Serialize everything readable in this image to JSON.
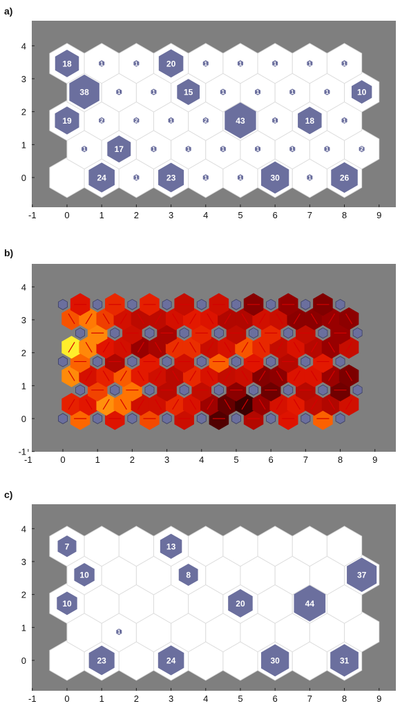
{
  "figure": {
    "panels": [
      {
        "label": "a)"
      },
      {
        "label": "b)"
      },
      {
        "label": "c)"
      }
    ]
  },
  "colors": {
    "plot_background": "#7f7f7f",
    "hex_empty": "#ffffff",
    "hex_edge": "#dcdcdc",
    "marker_fill": "#6b6f9e",
    "marker_text": "#ffffff",
    "heat_low": "#000000",
    "heat_mid": "#ff2a00",
    "heat_high": "#ffff33",
    "link_line": "#d40000"
  },
  "chart_data": [
    {
      "type": "hexagonal-som-hits",
      "panel": "a)",
      "grid": {
        "cols": 9,
        "rows": 5,
        "odd_row_offset": 0.5
      },
      "xlim": [
        -1,
        9.5
      ],
      "ylim": [
        -1,
        4.3
      ],
      "xticks": [
        -1,
        0,
        1,
        2,
        3,
        4,
        5,
        6,
        7,
        8,
        9
      ],
      "yticks": [
        -1,
        0,
        1,
        2,
        3,
        4
      ],
      "hits": [
        [
          0,
          24,
          1,
          23,
          1,
          1,
          30,
          1,
          26
        ],
        [
          1,
          17,
          1,
          1,
          1,
          1,
          1,
          1,
          2
        ],
        [
          19,
          2,
          2,
          1,
          2,
          43,
          1,
          18,
          1
        ],
        [
          38,
          1,
          1,
          15,
          1,
          1,
          1,
          1,
          10
        ],
        [
          18,
          1,
          1,
          20,
          1,
          1,
          1,
          1,
          1
        ]
      ],
      "xlabel": "",
      "ylabel": "",
      "title": ""
    },
    {
      "type": "hexagonal-som-neighbor-distances",
      "panel": "b)",
      "grid": {
        "cols": 9,
        "rows": 5,
        "odd_row_offset": 0.5
      },
      "xlim": [
        -1,
        9.5
      ],
      "ylim": [
        -1,
        4.3
      ],
      "xticks": [
        -1,
        0,
        1,
        2,
        3,
        4,
        5,
        6,
        7,
        8,
        9
      ],
      "yticks": [
        -1,
        0,
        1,
        2,
        3,
        4
      ],
      "cell_intensity": [
        [
          0.7,
          0.65,
          0.55,
          0.55,
          0.4,
          0.12,
          0.55,
          0.65,
          0.55
        ],
        [
          0.7,
          0.85,
          0.55,
          0.4,
          0.25,
          0.3,
          0.35,
          0.35,
          0.2
        ],
        [
          0.9,
          0.55,
          0.45,
          0.55,
          0.55,
          0.65,
          0.45,
          0.6,
          0.4
        ],
        [
          0.8,
          0.55,
          0.4,
          0.55,
          0.5,
          0.5,
          0.45,
          0.45,
          0.4
        ],
        [
          0.7,
          0.5,
          0.45,
          0.7,
          0.45,
          0.4,
          0.25,
          0.1,
          0.4
        ]
      ],
      "xlabel": "",
      "ylabel": "",
      "title": ""
    },
    {
      "type": "hexagonal-som-hits",
      "panel": "c)",
      "grid": {
        "cols": 9,
        "rows": 5,
        "odd_row_offset": 0.5
      },
      "xlim": [
        -1,
        9.5
      ],
      "ylim": [
        -1,
        4.3
      ],
      "xticks": [
        -1,
        0,
        1,
        2,
        3,
        4,
        5,
        6,
        7,
        8,
        9
      ],
      "yticks": [
        -1,
        0,
        1,
        2,
        3,
        4
      ],
      "hits": [
        [
          0,
          23,
          0,
          24,
          0,
          0,
          30,
          0,
          31
        ],
        [
          0,
          1,
          0,
          0,
          0,
          0,
          0,
          0,
          0
        ],
        [
          10,
          0,
          0,
          0,
          0,
          20,
          0,
          44,
          0
        ],
        [
          10,
          0,
          0,
          8,
          0,
          0,
          0,
          0,
          37
        ],
        [
          7,
          0,
          0,
          13,
          0,
          0,
          0,
          0,
          0
        ]
      ],
      "xlabel": "",
      "ylabel": "",
      "title": ""
    }
  ]
}
